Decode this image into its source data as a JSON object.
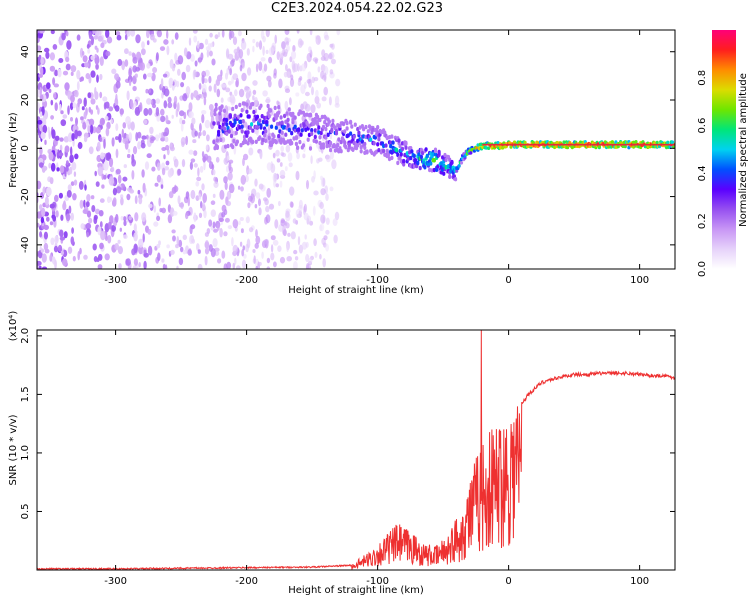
{
  "figure": {
    "title": "C2E3.2024.054.22.02.G23"
  },
  "colors": {
    "snr_line": "#ee3030",
    "track_core": "#e8283c",
    "colorbar_stops": [
      "#ffffff",
      "#e6d2fa",
      "#c896f5",
      "#9650f0",
      "#5a00ff",
      "#0050ff",
      "#00d2f0",
      "#00e678",
      "#6ee600",
      "#dcdc00",
      "#ff8c00",
      "#ff1e1e",
      "#ff0078"
    ]
  },
  "chart_data": [
    {
      "type": "heatmap",
      "title": "",
      "xlabel": "Height of straight line (km)",
      "ylabel": "Frequency (Hz)",
      "xlim": [
        -360,
        127
      ],
      "ylim": [
        -50,
        49
      ],
      "xticks": [
        -300,
        -200,
        -100,
        0,
        100
      ],
      "yticks": [
        -40,
        -20,
        0,
        20,
        40
      ],
      "grid": false,
      "colorbar": {
        "label": "Normalized spectral amplitude",
        "range": [
          0,
          1
        ],
        "ticks": [
          0.0,
          0.2,
          0.4,
          0.6,
          0.8
        ]
      },
      "track": {
        "x": [
          -225,
          -200,
          -175,
          -150,
          -125,
          -100,
          -85,
          -70,
          -55,
          -45,
          -40,
          -35,
          -30,
          -20,
          -10,
          0,
          20,
          50,
          80,
          100,
          127
        ],
        "freq": [
          9,
          10,
          9,
          7,
          5,
          3,
          -1,
          -4,
          -5,
          -8,
          -9,
          -4,
          -1,
          1,
          1,
          1.5,
          1.5,
          1.5,
          1.5,
          1.5,
          1.5
        ],
        "amplitude": [
          0.35,
          0.4,
          0.35,
          0.3,
          0.35,
          0.4,
          0.45,
          0.5,
          0.6,
          0.5,
          0.45,
          0.6,
          0.7,
          0.85,
          0.9,
          0.9,
          0.92,
          0.9,
          0.9,
          0.88,
          0.85
        ]
      },
      "noise_region": {
        "x_range": [
          -360,
          -130
        ],
        "freq_range": [
          -50,
          49
        ],
        "amplitude_range": [
          0.05,
          0.3
        ]
      }
    },
    {
      "type": "line",
      "title": "",
      "xlabel": "Height of straight line (km)",
      "ylabel": "SNR (10 * v/v)",
      "y_multiplier": "(x10⁴)",
      "xlim": [
        -360,
        127
      ],
      "ylim": [
        0,
        2.05
      ],
      "xticks": [
        -300,
        -200,
        -100,
        0,
        100
      ],
      "yticks": [
        0.5,
        1.0,
        1.5,
        2.0
      ],
      "grid": false,
      "series": [
        {
          "x": [
            -360,
            -300,
            -250,
            -200,
            -150,
            -120,
            -105,
            -95,
            -85,
            -75,
            -65,
            -55,
            -45,
            -35,
            -30,
            -25,
            -21,
            -18,
            -15,
            -10,
            -5,
            0,
            5,
            10,
            15,
            20,
            25,
            30,
            40,
            50,
            60,
            70,
            80,
            90,
            100,
            110,
            120,
            127
          ],
          "y": [
            0.01,
            0.01,
            0.015,
            0.02,
            0.025,
            0.04,
            0.15,
            0.25,
            0.35,
            0.3,
            0.2,
            0.18,
            0.3,
            0.5,
            0.7,
            0.85,
            1.0,
            0.95,
            1.05,
            1.1,
            1.2,
            1.25,
            1.35,
            1.42,
            1.5,
            1.55,
            1.6,
            1.62,
            1.65,
            1.67,
            1.67,
            1.68,
            1.68,
            1.68,
            1.67,
            1.66,
            1.66,
            1.64
          ],
          "peak": {
            "x": -21,
            "y": 2.05
          }
        }
      ]
    }
  ]
}
